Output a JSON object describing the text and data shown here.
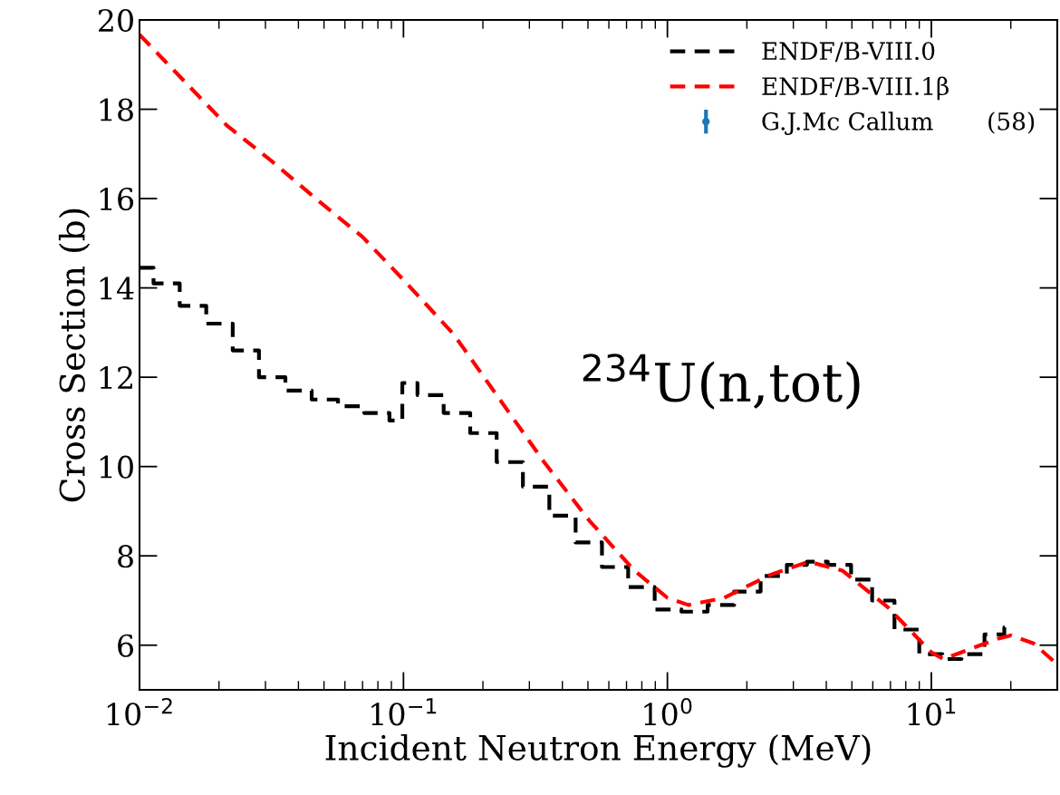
{
  "chart_data": {
    "type": "line",
    "xlabel": "Incident Neutron Energy (MeV)",
    "ylabel": "Cross Section (b)",
    "log": "x",
    "xlim": [
      0.01,
      30
    ],
    "xticks": [
      {
        "value": 0.01,
        "label": "10$^{−2}$"
      },
      {
        "value": 0.1,
        "label": "10$^{−1}$"
      },
      {
        "value": 1,
        "label": "10$^{0}$"
      },
      {
        "value": 10,
        "label": "10$^{1}$"
      }
    ],
    "ylim": [
      5,
      20
    ],
    "yticks": [
      6,
      8,
      10,
      12,
      14,
      16,
      18,
      20
    ],
    "line_style": "dashed",
    "legend": "top right",
    "grid": false,
    "annotations": [
      "$^{234}$U(n,tot)"
    ],
    "series": [
      {
        "name": "ENDF/B-VIII.0",
        "type": "step",
        "color": "#000000",
        "x": [
          0.01,
          0.0126,
          0.0158,
          0.02,
          0.0251,
          0.0316,
          0.0398,
          0.05,
          0.063,
          0.079,
          0.098,
          0.1,
          0.126,
          0.158,
          0.2,
          0.251,
          0.316,
          0.398,
          0.5,
          0.63,
          0.79,
          1.0,
          1.26,
          1.58,
          2.0,
          2.51,
          3.16,
          3.6,
          4.5,
          5.43,
          6.5,
          8.0,
          10,
          12,
          14,
          17.8,
          20
        ],
        "values": [
          14.45,
          14.1,
          13.6,
          13.2,
          12.6,
          12.0,
          11.7,
          11.5,
          11.35,
          11.2,
          11.03,
          11.87,
          11.6,
          11.2,
          10.75,
          10.1,
          9.55,
          8.9,
          8.3,
          7.75,
          7.3,
          6.8,
          6.75,
          6.9,
          7.2,
          7.55,
          7.8,
          7.87,
          7.8,
          7.47,
          7.0,
          6.35,
          5.8,
          5.69,
          5.8,
          6.24,
          6.4
        ]
      },
      {
        "name": "ENDF/B-VIII.1β",
        "color": "#ff0000",
        "x": [
          0.01,
          0.0214,
          0.0318,
          0.0472,
          0.07,
          0.1,
          0.155,
          0.23,
          0.341,
          0.506,
          0.75,
          1.0,
          1.2,
          1.64,
          2.44,
          3.43,
          4.6,
          6.84,
          10,
          11.1,
          17.8,
          20,
          24.4,
          30
        ],
        "values": [
          19.67,
          17.64,
          16.83,
          15.97,
          15.14,
          14.18,
          12.96,
          11.53,
          10.1,
          8.79,
          7.67,
          7.06,
          6.9,
          7.06,
          7.57,
          7.87,
          7.67,
          6.85,
          5.84,
          5.69,
          6.14,
          6.22,
          6.04,
          5.57
        ]
      },
      {
        "name": "G.J.Mc Callum       (58)",
        "type": "scatter",
        "color": "#1f77b4",
        "marker": "circle"
      }
    ]
  }
}
